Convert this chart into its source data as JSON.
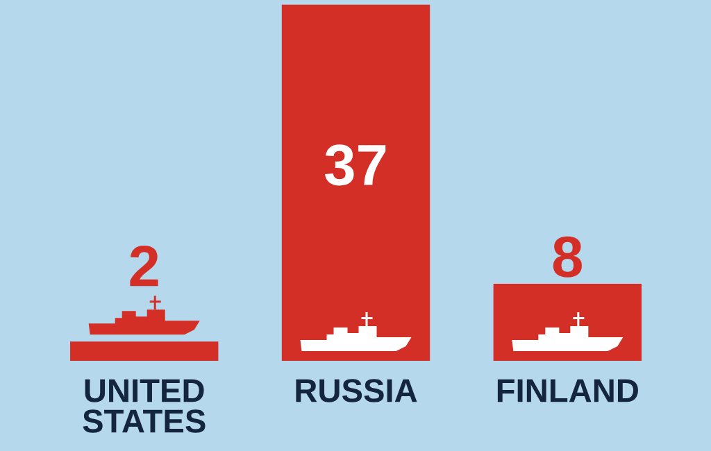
{
  "chart_data": {
    "type": "bar",
    "categories": [
      "UNITED STATES",
      "RUSSIA",
      "FINLAND"
    ],
    "values": [
      2,
      37,
      8
    ],
    "color": "#d32f26",
    "data_labels": true,
    "tick_labels": "x"
  }
}
